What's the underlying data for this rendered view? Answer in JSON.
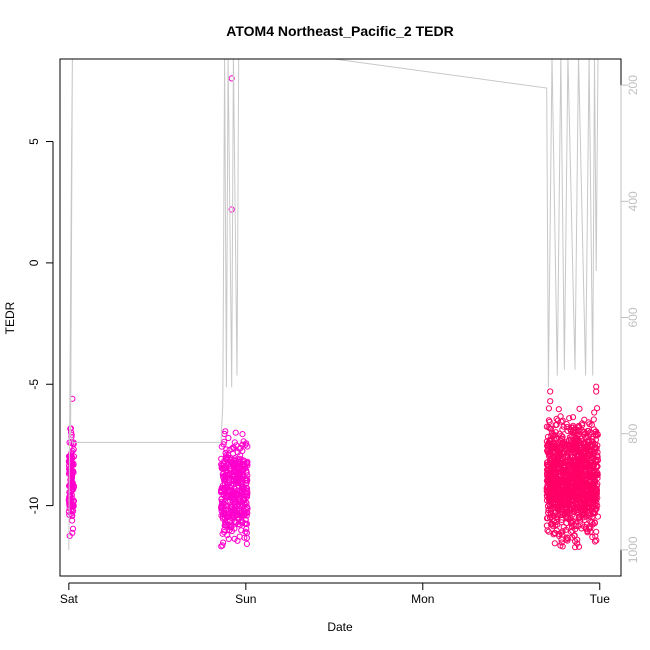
{
  "chart_data": {
    "type": "scatter",
    "title": "ATOM4 Northeast_Pacific_2 TEDR",
    "xlabel": "Date",
    "ylabel": "TEDR",
    "x_ticks": [
      "Sat",
      "Sun",
      "Mon",
      "Tue"
    ],
    "x_range_days": [
      -0.05,
      3.12
    ],
    "ylim": [
      -12.9,
      8.4
    ],
    "y_ticks": [
      -10,
      -5,
      0,
      5
    ],
    "y2_ticks": [
      200,
      400,
      600,
      800,
      1000
    ],
    "y2lim": [
      1045,
      155
    ],
    "colors": {
      "points_early": "#ff00cc",
      "points_late": "#ff0066",
      "depth_line": "#c8c8c8"
    },
    "clusters": [
      {
        "day_start": 0.0,
        "day_end": 0.03,
        "y_min": -11.5,
        "y_max": -6.1,
        "color": "#ff00cc",
        "count": 120
      },
      {
        "day_start": 0.86,
        "day_end": 1.01,
        "y_min": -12.2,
        "y_max": -6.3,
        "color": "#ff00cc",
        "count": 420
      },
      {
        "day_start": 2.7,
        "day_end": 2.99,
        "y_min": -12.2,
        "y_max": -5.6,
        "color": "#ff0066",
        "count": 1200
      }
    ],
    "outliers": [
      {
        "day": 0.02,
        "y": -5.6,
        "color": "#ff00cc"
      },
      {
        "day": 0.92,
        "y": 7.6,
        "color": "#ff00cc"
      },
      {
        "day": 0.92,
        "y": 2.2,
        "color": "#ff00cc"
      },
      {
        "day": 2.72,
        "y": -5.3,
        "color": "#ff0066"
      },
      {
        "day": 2.72,
        "y": -5.7,
        "color": "#ff0066"
      },
      {
        "day": 2.98,
        "y": -5.1,
        "color": "#ff0066"
      },
      {
        "day": 2.98,
        "y": -5.3,
        "color": "#ff0066"
      }
    ],
    "depth_line": [
      [
        0.0,
        1000
      ],
      [
        0.015,
        330
      ],
      [
        0.02,
        150
      ],
      [
        0.01,
        800
      ],
      [
        0.02,
        815
      ],
      [
        0.8,
        815
      ],
      [
        0.86,
        815
      ],
      [
        0.87,
        750
      ],
      [
        0.88,
        150
      ],
      [
        0.89,
        720
      ],
      [
        0.9,
        150
      ],
      [
        0.92,
        720
      ],
      [
        0.93,
        150
      ],
      [
        0.95,
        700
      ],
      [
        0.96,
        155
      ],
      [
        1.5,
        155
      ],
      [
        2.7,
        205
      ],
      [
        2.71,
        720
      ],
      [
        2.73,
        150
      ],
      [
        2.76,
        700
      ],
      [
        2.78,
        150
      ],
      [
        2.8,
        690
      ],
      [
        2.82,
        150
      ],
      [
        2.86,
        690
      ],
      [
        2.88,
        150
      ],
      [
        2.92,
        700
      ],
      [
        2.94,
        150
      ],
      [
        2.96,
        700
      ],
      [
        2.97,
        155
      ],
      [
        2.98,
        520
      ],
      [
        2.99,
        155
      ]
    ]
  }
}
